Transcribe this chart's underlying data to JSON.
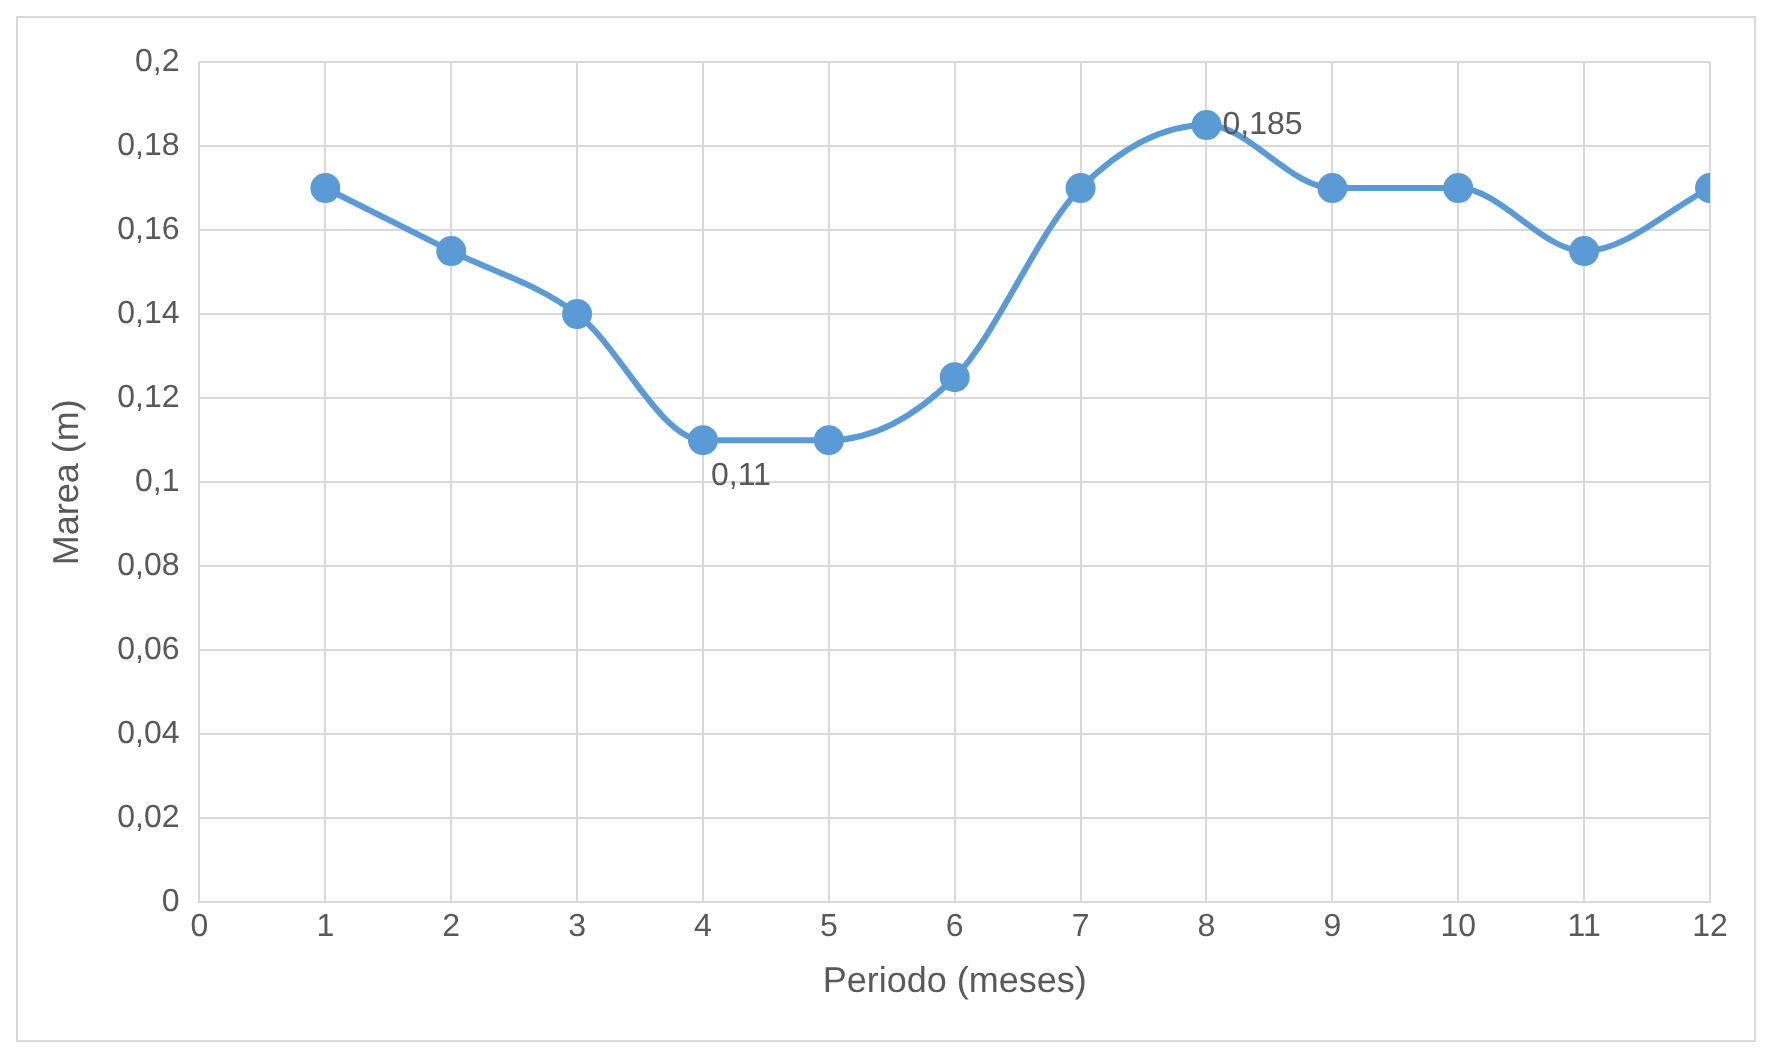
{
  "chart_data": {
    "type": "line",
    "xlabel": "Periodo (meses)",
    "ylabel": "Marea (m)",
    "x": [
      1,
      2,
      3,
      4,
      5,
      6,
      7,
      8,
      9,
      10,
      11,
      12
    ],
    "series": [
      {
        "color": "#5b9bd5",
        "values": [
          0.17,
          0.155,
          0.14,
          0.11,
          0.11,
          0.125,
          0.17,
          0.185,
          0.17,
          0.17,
          0.155,
          0.17
        ],
        "value_labels": [
          null,
          null,
          null,
          "0,11",
          null,
          null,
          null,
          "0,185",
          null,
          null,
          null,
          null
        ]
      }
    ],
    "xlim": [
      0,
      12
    ],
    "xticks": [
      0,
      1,
      2,
      3,
      4,
      5,
      6,
      7,
      8,
      9,
      10,
      11,
      12
    ],
    "ylim": [
      0,
      0.2
    ],
    "yticks": [
      0,
      {
        "value": 0.02,
        "label": "0,02"
      },
      {
        "value": 0.04,
        "label": "0,04"
      },
      {
        "value": 0.06,
        "label": "0,06"
      },
      {
        "value": 0.08,
        "label": "0,08"
      },
      {
        "value": 0.1,
        "label": "0,1"
      },
      {
        "value": 0.12,
        "label": "0,12"
      },
      {
        "value": 0.14,
        "label": "0,14"
      },
      {
        "value": 0.16,
        "label": "0,16"
      },
      {
        "value": 0.18,
        "label": "0,18"
      },
      {
        "value": 0.2,
        "label": "0,2"
      }
    ],
    "grid": true,
    "legend": false,
    "marker": "circle",
    "line_style": "solid"
  }
}
